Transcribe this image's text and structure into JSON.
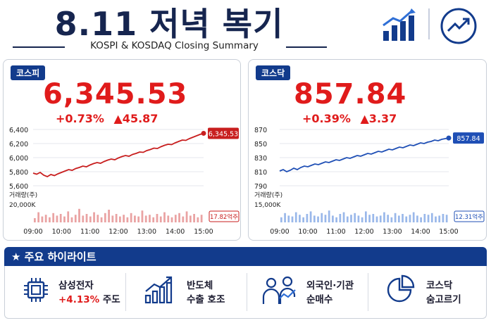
{
  "header": {
    "title": "8.11 저녁 복기",
    "subtitle": "KOSPI & KOSDAQ Closing Summary",
    "icons": [
      "bar-chart-up-icon",
      "circle-trend-up-icon"
    ]
  },
  "colors": {
    "navy": "#123b8c",
    "up_red": "#e01b1b",
    "kospi_line": "#c81e1e",
    "kosdaq_line": "#1f4fb5"
  },
  "kospi": {
    "tag": "코스피",
    "value": "6,345.53",
    "pct": "+0.73%",
    "diff": "▲45.87",
    "badge": "6,345.53",
    "volume_label": "거래량(주)",
    "volume_axis": "20,000K",
    "volume_badge": "17.82억주"
  },
  "kosdaq": {
    "tag": "코스닥",
    "value": "857.84",
    "pct": "+0.39%",
    "diff": "▲3.37",
    "badge": "857.84",
    "volume_label": "거래량(주)",
    "volume_axis": "15,000K",
    "volume_badge": "12.31억주"
  },
  "chart_data": [
    {
      "type": "line",
      "series": [
        {
          "name": "코스피",
          "values": [
            5780,
            5765,
            5790,
            5750,
            5730,
            5760,
            5745,
            5770,
            5790,
            5810,
            5830,
            5820,
            5845,
            5860,
            5880,
            5870,
            5895,
            5915,
            5930,
            5920,
            5945,
            5965,
            5980,
            5970,
            5995,
            6015,
            6030,
            6020,
            6045,
            6060,
            6080,
            6075,
            6100,
            6115,
            6135,
            6130,
            6155,
            6175,
            6190,
            6185,
            6210,
            6230,
            6250,
            6245,
            6270,
            6290,
            6310,
            6330,
            6345.53
          ]
        }
      ],
      "x_ticks": [
        "09:00",
        "10:00",
        "11:00",
        "12:00",
        "13:00",
        "14:00",
        "15:00"
      ],
      "y_ticks": [
        "6,400",
        "6,200",
        "6,000",
        "5,800",
        "5,600"
      ],
      "ylim": [
        5600,
        6400
      ],
      "volume": [
        0.25,
        0.6,
        0.35,
        0.45,
        0.3,
        0.55,
        0.4,
        0.5,
        0.35,
        0.65,
        0.3,
        0.45,
        0.8,
        0.4,
        0.5,
        0.35,
        0.6,
        0.45,
        0.3,
        0.55,
        0.75,
        0.4,
        0.5,
        0.35,
        0.45,
        0.3,
        0.55,
        0.4,
        0.35,
        0.7,
        0.4,
        0.45,
        0.3,
        0.5,
        0.35,
        0.6,
        0.4,
        0.3,
        0.45,
        0.55,
        0.35,
        0.65,
        0.4,
        0.5,
        0.3,
        0.45
      ]
    },
    {
      "type": "line",
      "series": [
        {
          "name": "코스닥",
          "values": [
            811,
            813,
            810,
            812,
            815,
            813,
            816,
            818,
            817,
            819,
            821,
            820,
            822,
            824,
            823,
            825,
            827,
            826,
            828,
            830,
            829,
            831,
            833,
            832,
            834,
            836,
            835,
            837,
            839,
            838,
            840,
            842,
            841,
            843,
            845,
            844,
            846,
            848,
            847,
            849,
            851,
            850,
            852,
            853,
            855,
            854,
            856,
            857,
            857.84
          ]
        }
      ],
      "x_ticks": [
        "09:00",
        "10:00",
        "11:00",
        "12:00",
        "13:00",
        "14:00",
        "15:00"
      ],
      "y_ticks": [
        "870",
        "850",
        "830",
        "810",
        "790"
      ],
      "ylim": [
        790,
        870
      ],
      "volume": [
        0.3,
        0.55,
        0.4,
        0.35,
        0.6,
        0.45,
        0.3,
        0.5,
        0.65,
        0.4,
        0.35,
        0.55,
        0.45,
        0.7,
        0.4,
        0.3,
        0.5,
        0.6,
        0.35,
        0.45,
        0.55,
        0.4,
        0.3,
        0.65,
        0.45,
        0.5,
        0.35,
        0.4,
        0.6,
        0.45,
        0.3,
        0.55,
        0.4,
        0.5,
        0.35,
        0.45,
        0.6,
        0.4,
        0.3,
        0.5,
        0.45,
        0.55,
        0.35,
        0.4,
        0.5,
        0.45
      ]
    }
  ],
  "highlights": {
    "title": "주요 하이라이트",
    "items": [
      {
        "icon": "chip-icon",
        "line1": "삼성전자",
        "line2_red": "+4.13%",
        "line2": " 주도"
      },
      {
        "icon": "bar-growth-icon",
        "line1": "반도체",
        "line2_red": "",
        "line2": "수출 호조"
      },
      {
        "icon": "investors-icon",
        "line1": "외국인·기관",
        "line2_red": "",
        "line2": "순매수"
      },
      {
        "icon": "pie-chart-icon",
        "line1": "코스닥",
        "line2_red": "",
        "line2": "숨고르기"
      }
    ]
  }
}
